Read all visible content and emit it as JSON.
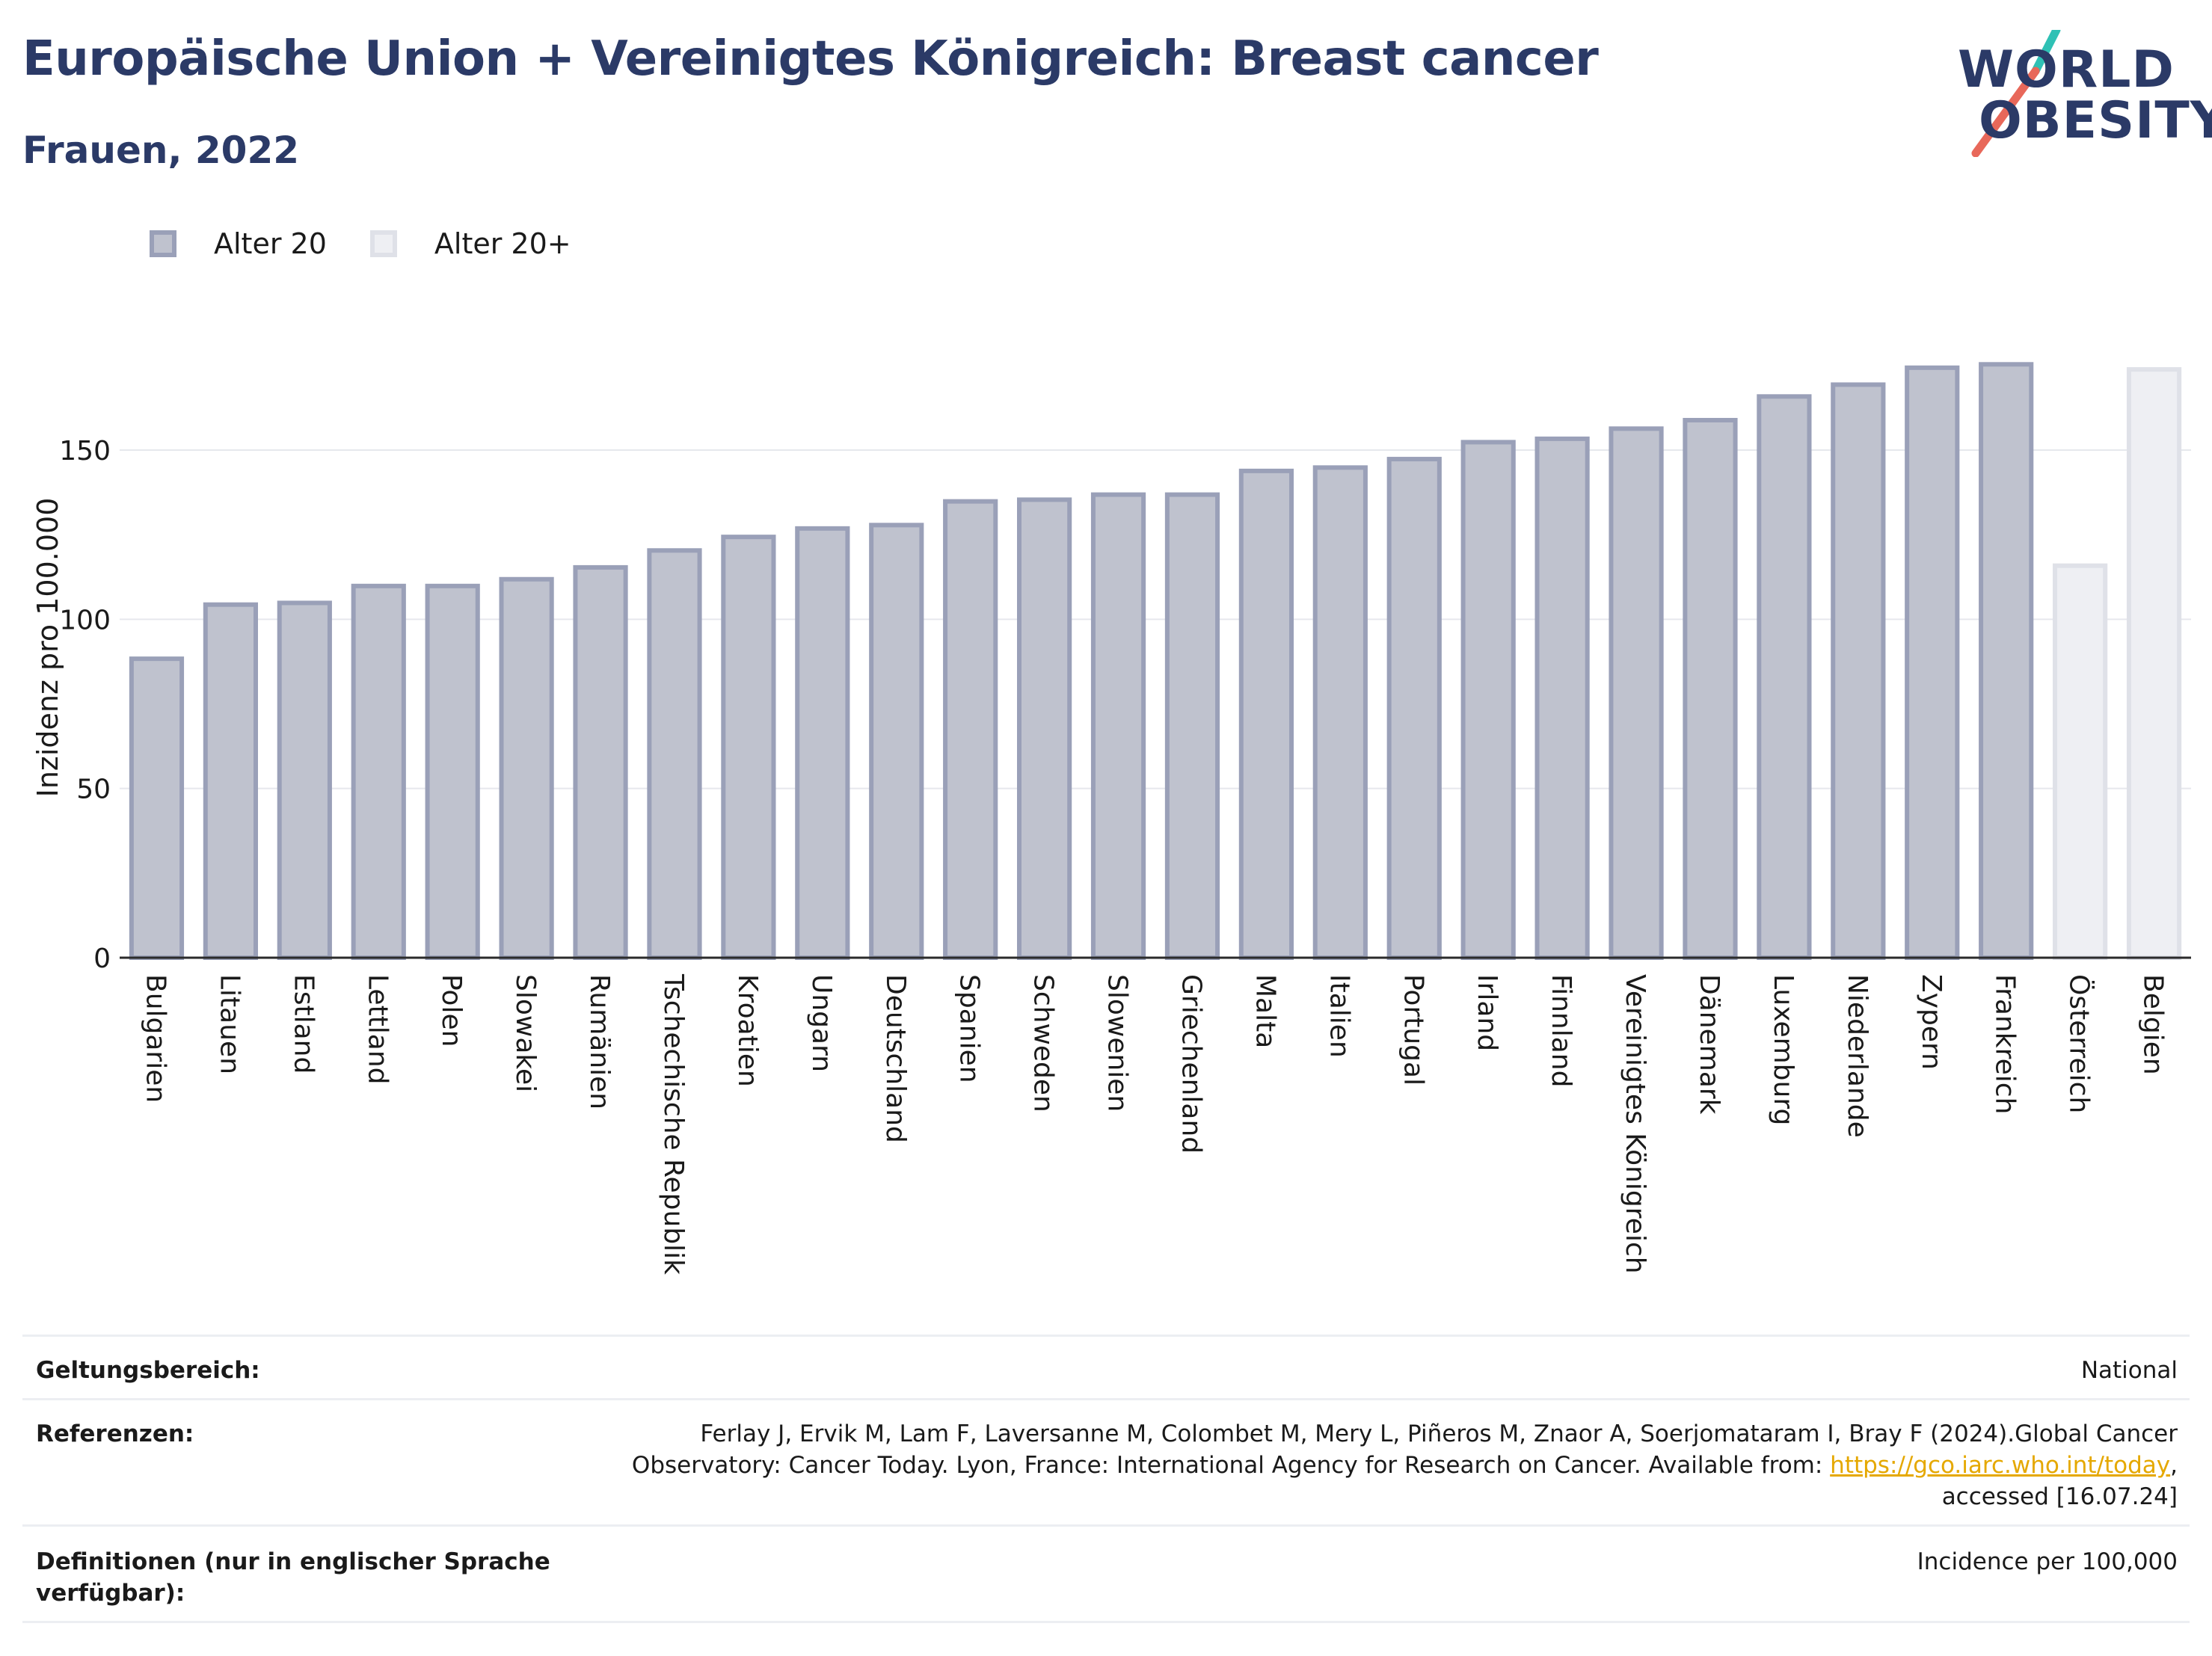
{
  "header": {
    "title": "Europäische Union + Vereinigtes Königreich: Breast cancer",
    "subtitle": "Frauen, 2022"
  },
  "logo": {
    "line1": "WORLD",
    "line2": "OBESITY"
  },
  "colors": {
    "title": "#2b3a67",
    "bar_fill": "#bfc2ce",
    "bar_border": "#9aa0b8",
    "bar_fill_light": "#eeeff3",
    "bar_border_light": "#dfe1e8",
    "logo_teal": "#2fc1b5",
    "logo_coral": "#e8685a",
    "link": "#e5a800"
  },
  "chart_data": {
    "type": "bar",
    "ylabel": "Inzidenz pro 100.000",
    "ylim": [
      0,
      190
    ],
    "yticks": [
      0,
      50,
      100,
      150
    ],
    "grid": true,
    "legend_position": "top-left",
    "legend": [
      {
        "label": "Alter 20",
        "style": "dark"
      },
      {
        "label": "Alter 20+",
        "style": "light"
      }
    ],
    "categories": [
      "Bulgarien",
      "Litauen",
      "Estland",
      "Lettland",
      "Polen",
      "Slowakei",
      "Rumänien",
      "Tschechische Republik",
      "Kroatien",
      "Ungarn",
      "Deutschland",
      "Spanien",
      "Schweden",
      "Slowenien",
      "Griechenland",
      "Malta",
      "Italien",
      "Portugal",
      "Irland",
      "Finnland",
      "Vereinigtes Königreich",
      "Dänemark",
      "Luxemburg",
      "Niederlande",
      "Zypern",
      "Frankreich",
      "Österreich",
      "Belgien"
    ],
    "values": [
      89,
      105,
      105.5,
      110.5,
      110.5,
      112.5,
      116,
      121,
      125,
      127.5,
      128.5,
      135.5,
      136,
      137.5,
      137.5,
      144.5,
      145.5,
      148,
      153,
      154,
      157,
      159.5,
      166.5,
      170,
      175,
      176,
      116.5,
      174.5
    ],
    "series_index": [
      0,
      0,
      0,
      0,
      0,
      0,
      0,
      0,
      0,
      0,
      0,
      0,
      0,
      0,
      0,
      0,
      0,
      0,
      0,
      0,
      0,
      0,
      0,
      0,
      0,
      0,
      1,
      1
    ]
  },
  "footer": {
    "rows": [
      {
        "label": "Geltungsbereich:",
        "value": "National"
      },
      {
        "label": "Referenzen:",
        "value_pre": "Ferlay J, Ervik M, Lam F, Laversanne M, Colombet M, Mery L, Piñeros M, Znaor A, Soerjomataram I, Bray F (2024).Global Cancer Observatory: Cancer Today. Lyon, France: International Agency for Research on Cancer. Available from: ",
        "link_text": "https://gco.iarc.who.int/today",
        "value_post": ", accessed [16.07.24]"
      },
      {
        "label": "Definitionen (nur in englischer Sprache verfügbar):",
        "value": "Incidence per 100,000"
      }
    ]
  }
}
